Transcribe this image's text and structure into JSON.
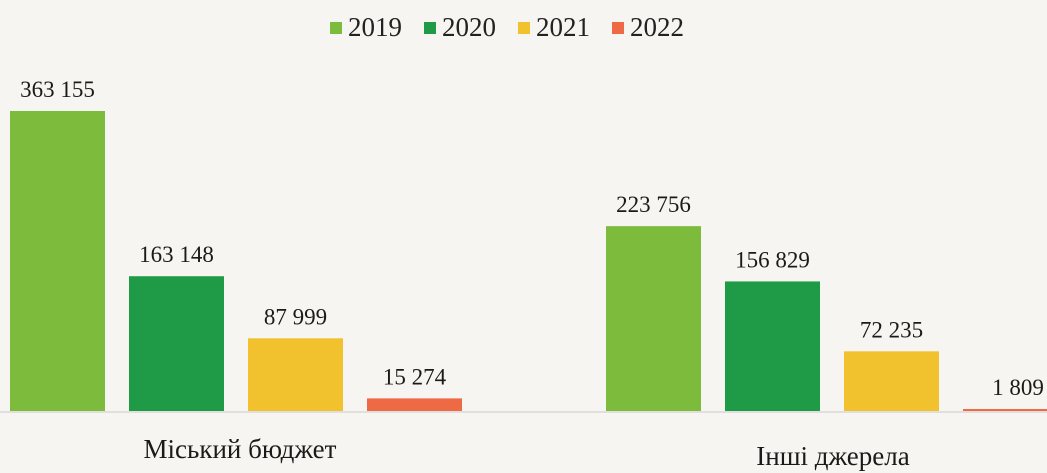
{
  "chart_data": {
    "type": "bar",
    "categories": [
      "Міський бюджет",
      "Інші джерела"
    ],
    "series": [
      {
        "name": "2019",
        "color": "#7dbb3c",
        "values": [
          363155,
          223756
        ],
        "labels": [
          "363 155",
          "223 756"
        ]
      },
      {
        "name": "2020",
        "color": "#1f9a46",
        "values": [
          163148,
          156829
        ],
        "labels": [
          "163 148",
          "156 829"
        ]
      },
      {
        "name": "2021",
        "color": "#f2c12e",
        "values": [
          87999,
          72235
        ],
        "labels": [
          "87 999",
          "72 235"
        ]
      },
      {
        "name": "2022",
        "color": "#ee6a45",
        "values": [
          15274,
          1809
        ],
        "labels": [
          "15 274",
          "1 809"
        ]
      }
    ],
    "ylim": [
      0,
      363155
    ],
    "legend": "top-center",
    "grid": false
  }
}
